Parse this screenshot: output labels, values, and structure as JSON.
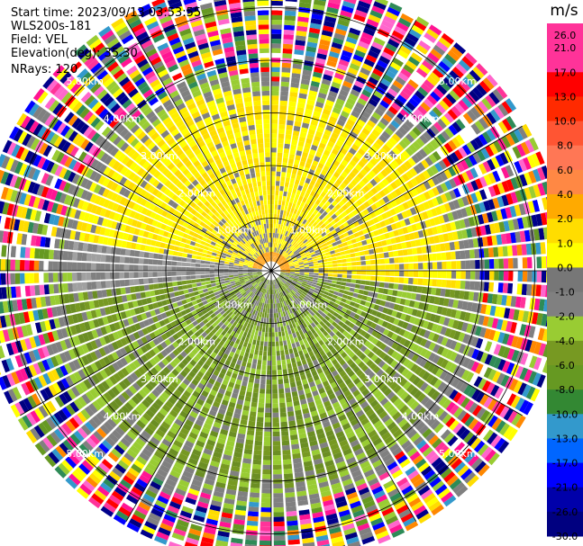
{
  "header": {
    "start_time": "Start time: 2023/09/13 03:53:55",
    "instrument": "WLS200s-181",
    "field": "Field: VEL",
    "elevation": "Elevation(deg): 35.30",
    "nrays": "NRays: 120"
  },
  "colorbar": {
    "unit": "m/s",
    "ticks": [
      "26.0",
      "21.0",
      "17.0",
      "13.0",
      "10.0",
      "8.0",
      "6.0",
      "4.0",
      "2.0",
      "1.0",
      "0.0",
      "-1.0",
      "-2.0",
      "-4.0",
      "-6.0",
      "-8.0",
      "-10.0",
      "-13.0",
      "-17.0",
      "-21.0",
      "-26.0",
      "-30.0"
    ],
    "colors": [
      "#ff3399",
      "#ff3399",
      "#ff0000",
      "#ff2a00",
      "#ff5533",
      "#ff7755",
      "#ff8844",
      "#ffaa00",
      "#ffdd00",
      "#ffff00",
      "#777777",
      "#808080",
      "#99cc33",
      "#779922",
      "#669922",
      "#338833",
      "#3399cc",
      "#0066ff",
      "#0000ff",
      "#0000aa",
      "#000080",
      "#000060"
    ]
  },
  "chart_data": {
    "type": "ppi",
    "field": "VEL",
    "units": "m/s",
    "nrays": 120,
    "elevation_deg": 35.3,
    "range_rings_km": [
      1.0,
      2.0,
      3.0,
      4.0,
      5.0
    ],
    "range_labels": [
      "1.00km",
      "2.00km",
      "3.00km",
      "4.00km",
      "5.00km"
    ],
    "spoke_angles_deg": [
      0,
      30,
      60,
      90,
      120,
      150,
      180,
      210,
      240,
      270,
      300,
      330
    ],
    "max_range_km": 5.5,
    "pattern": {
      "toward_sector_deg": [
        200,
        70
      ],
      "away_sector_deg": [
        340,
        90
      ],
      "clean_range_km": 3.6,
      "noise_range_km": 5.5
    }
  }
}
